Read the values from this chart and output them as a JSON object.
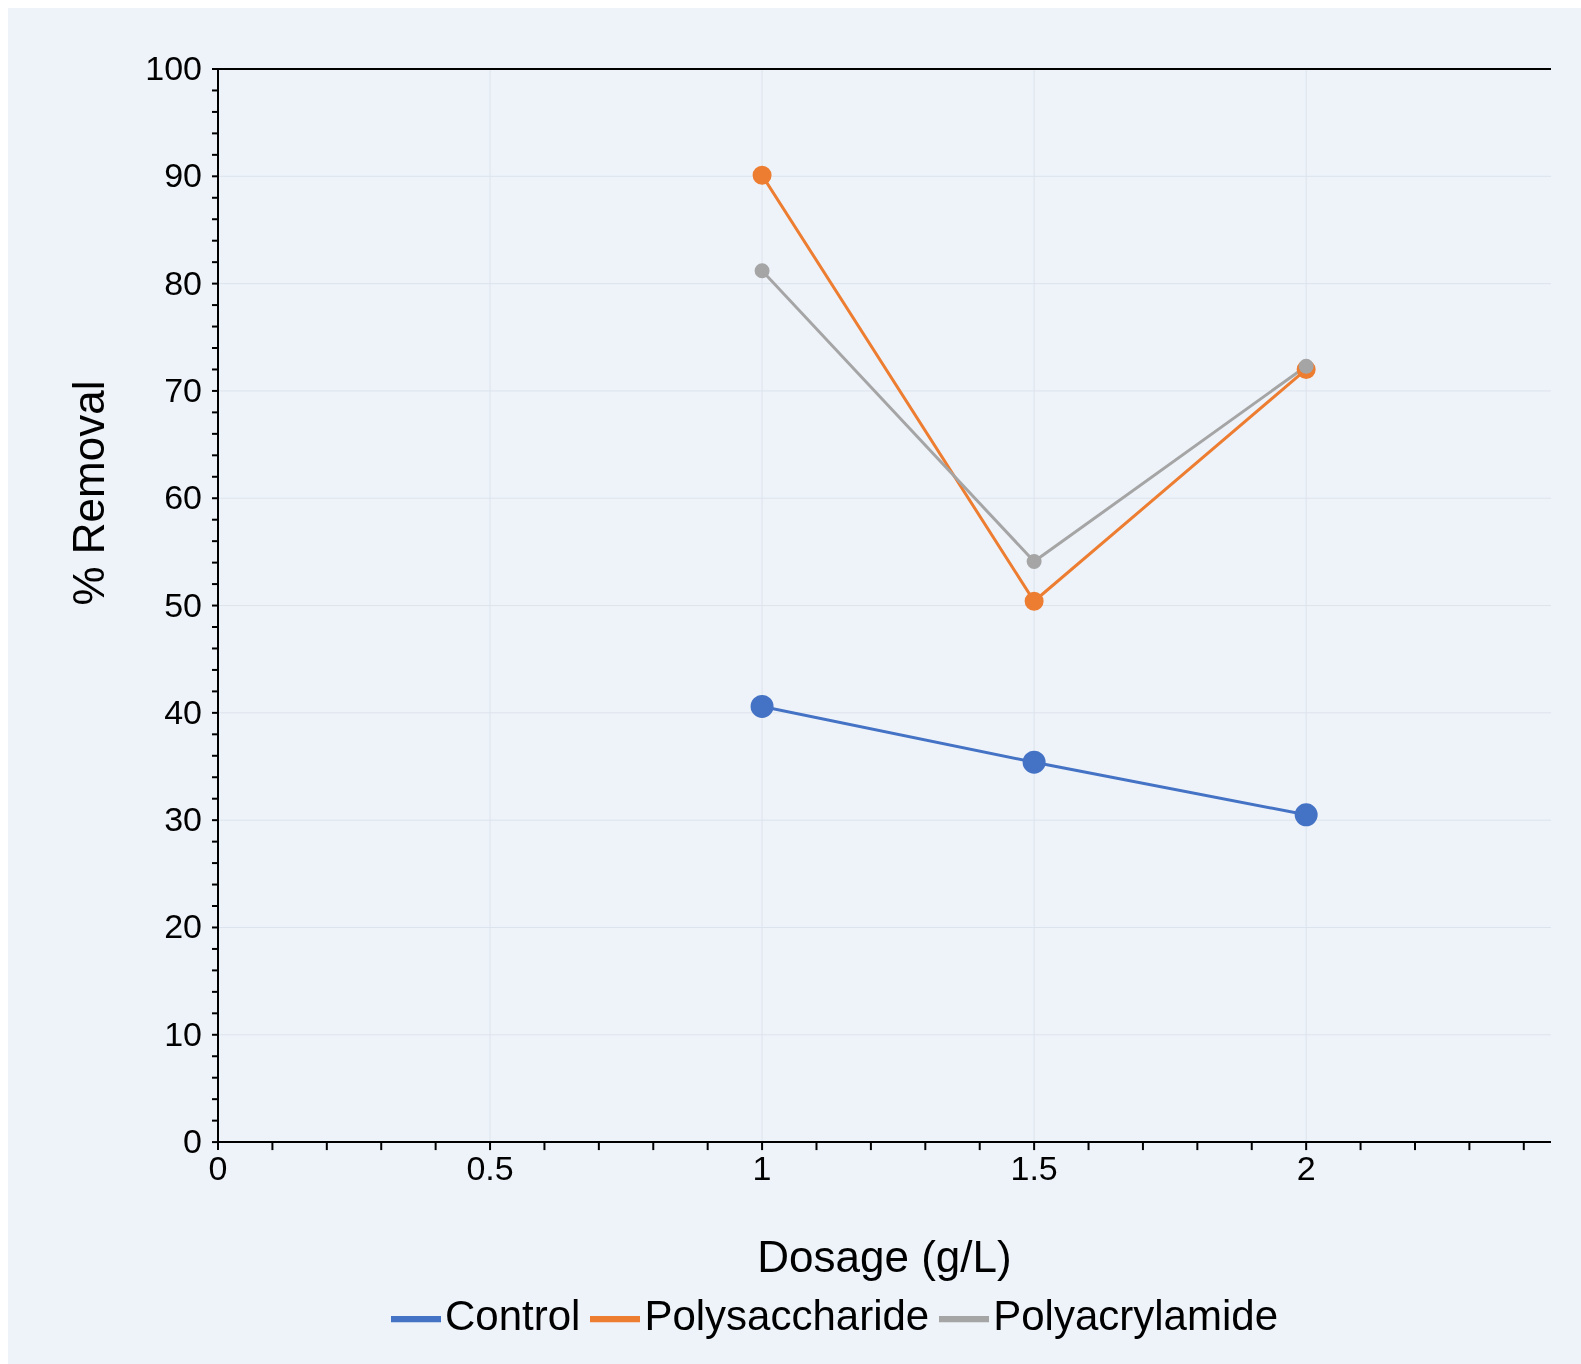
{
  "chart_data": {
    "type": "line",
    "xlabel": "Dosage (g/L)",
    "ylabel": "% Removal",
    "x": [
      1,
      1.5,
      2
    ],
    "series": [
      {
        "name": "Control",
        "color": "#4472c4",
        "values": [
          40.6,
          35.4,
          30.5
        ]
      },
      {
        "name": "Polysaccharide",
        "color": "#ed7d31",
        "values": [
          90.1,
          50.4,
          72.0
        ]
      },
      {
        "name": "Polyacrylamide",
        "color": "#a5a5a5",
        "values": [
          81.2,
          54.1,
          72.3
        ]
      }
    ],
    "xlim": [
      0,
      2.45
    ],
    "xticks": [
      0,
      {
        "value": 0.1,
        "label": null
      },
      {
        "value": 0.2,
        "label": null
      },
      {
        "value": 0.3,
        "label": null
      },
      {
        "value": 0.4,
        "label": null
      },
      0.5,
      {
        "value": 0.6,
        "label": null
      },
      {
        "value": 0.7,
        "label": null
      },
      {
        "value": 0.8,
        "label": null
      },
      {
        "value": 0.9,
        "label": null
      },
      1,
      {
        "value": 1.1,
        "label": null
      },
      {
        "value": 1.2,
        "label": null
      },
      {
        "value": 1.3,
        "label": null
      },
      {
        "value": 1.4,
        "label": null
      },
      1.5,
      {
        "value": 1.6,
        "label": null
      },
      {
        "value": 1.7,
        "label": null
      },
      {
        "value": 1.8,
        "label": null
      },
      {
        "value": 1.9,
        "label": null
      },
      2,
      {
        "value": 2.1,
        "label": null
      },
      {
        "value": 2.2,
        "label": null
      },
      {
        "value": 2.3,
        "label": null
      },
      {
        "value": 2.4,
        "label": null
      }
    ],
    "ylim": [
      0,
      100
    ],
    "yticks": [
      0,
      {
        "value": 2,
        "label": null
      },
      {
        "value": 4,
        "label": null
      },
      {
        "value": 6,
        "label": null
      },
      {
        "value": 8,
        "label": null
      },
      10,
      {
        "value": 12,
        "label": null
      },
      {
        "value": 14,
        "label": null
      },
      {
        "value": 16,
        "label": null
      },
      {
        "value": 18,
        "label": null
      },
      20,
      {
        "value": 22,
        "label": null
      },
      {
        "value": 24,
        "label": null
      },
      {
        "value": 26,
        "label": null
      },
      {
        "value": 28,
        "label": null
      },
      30,
      {
        "value": 32,
        "label": null
      },
      {
        "value": 34,
        "label": null
      },
      {
        "value": 36,
        "label": null
      },
      {
        "value": 38,
        "label": null
      },
      40,
      {
        "value": 42,
        "label": null
      },
      {
        "value": 44,
        "label": null
      },
      {
        "value": 46,
        "label": null
      },
      {
        "value": 48,
        "label": null
      },
      50,
      {
        "value": 52,
        "label": null
      },
      {
        "value": 54,
        "label": null
      },
      {
        "value": 56,
        "label": null
      },
      {
        "value": 58,
        "label": null
      },
      60,
      {
        "value": 62,
        "label": null
      },
      {
        "value": 64,
        "label": null
      },
      {
        "value": 66,
        "label": null
      },
      {
        "value": 68,
        "label": null
      },
      70,
      {
        "value": 72,
        "label": null
      },
      {
        "value": 74,
        "label": null
      },
      {
        "value": 76,
        "label": null
      },
      {
        "value": 78,
        "label": null
      },
      80,
      {
        "value": 82,
        "label": null
      },
      {
        "value": 84,
        "label": null
      },
      {
        "value": 86,
        "label": null
      },
      {
        "value": 88,
        "label": null
      },
      90,
      {
        "value": 92,
        "label": null
      },
      {
        "value": 94,
        "label": null
      },
      {
        "value": 96,
        "label": null
      },
      {
        "value": 98,
        "label": null
      },
      100
    ],
    "grid": true,
    "legend": "bottom",
    "marker": "circle",
    "line_style": "solid"
  }
}
